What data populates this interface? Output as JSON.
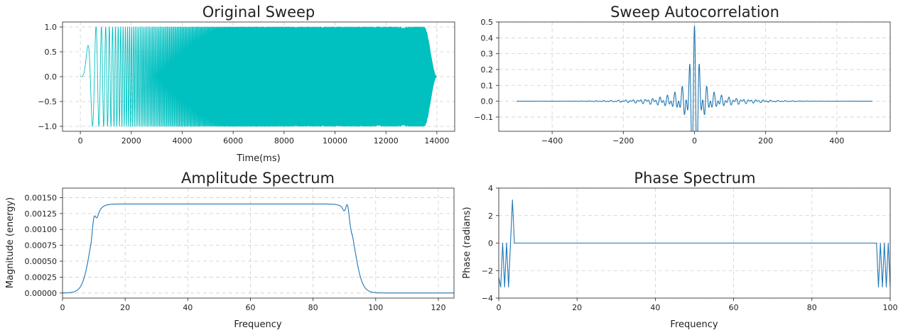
{
  "chart_data": [
    {
      "id": "sweep",
      "type": "line",
      "title": "Original Sweep",
      "xlabel": "Time(ms)",
      "ylabel": "",
      "xlim": [
        -700,
        14700
      ],
      "ylim": [
        -1.1,
        1.1
      ],
      "xticks": [
        0,
        2000,
        4000,
        6000,
        8000,
        10000,
        12000,
        14000
      ],
      "xtick_labels": [
        "0",
        "2000",
        "4000",
        "6000",
        "8000",
        "10000",
        "12000",
        "14000"
      ],
      "yticks": [
        -1.0,
        -0.5,
        0.0,
        0.5,
        1.0
      ],
      "ytick_labels": [
        "−1.0",
        "−0.5",
        "0.0",
        "0.5",
        "1.0"
      ],
      "grid": true,
      "color": "#00c0c0",
      "series": [
        {
          "kind": "linear-sweep",
          "t_start_ms": 0,
          "t_end_ms": 14000,
          "f_start": 0,
          "f_end": 92,
          "taper_ms": 500,
          "amplitude": 1.0
        }
      ]
    },
    {
      "id": "autocorr",
      "type": "line",
      "title": "Sweep Autocorrelation",
      "xlabel": "",
      "ylabel": "",
      "xlim": [
        -550,
        550
      ],
      "ylim": [
        -0.19,
        0.5
      ],
      "xticks": [
        -400,
        -200,
        0,
        200,
        400
      ],
      "xtick_labels": [
        "−400",
        "−200",
        "0",
        "200",
        "400"
      ],
      "yticks": [
        -0.1,
        0.0,
        0.1,
        0.2,
        0.3,
        0.4,
        0.5
      ],
      "ytick_labels": [
        "−0.1",
        "0.0",
        "0.1",
        "0.2",
        "0.3",
        "0.4",
        "0.5"
      ],
      "grid": true,
      "color": "#1f77b4",
      "series": [
        {
          "kind": "autocorrelation",
          "lag_start": -500,
          "lag_end": 500,
          "peak": 0.475,
          "min_value": -0.155,
          "min_lag": 2
        }
      ]
    },
    {
      "id": "amplitude",
      "type": "line",
      "title": "Amplitude Spectrum",
      "xlabel": "Frequency",
      "ylabel": "Magnitude (energy)",
      "xlim": [
        0,
        125
      ],
      "ylim": [
        -8e-05,
        0.00165
      ],
      "xticks": [
        0,
        20,
        40,
        60,
        80,
        100,
        120
      ],
      "xtick_labels": [
        "0",
        "20",
        "40",
        "60",
        "80",
        "100",
        "120"
      ],
      "yticks": [
        0,
        0.00025,
        0.0005,
        0.00075,
        0.001,
        0.00125,
        0.0015
      ],
      "ytick_labels": [
        "0.00000",
        "0.00025",
        "0.00050",
        "0.00075",
        "0.00100",
        "0.00125",
        "0.00150"
      ],
      "grid": true,
      "color": "#1f77b4",
      "series": [
        {
          "kind": "bandpass",
          "plateau": 0.0014,
          "peak": 0.00156,
          "rise_center": 8.8,
          "fall_center": 93.3,
          "edge_width": 1.2
        }
      ]
    },
    {
      "id": "phase",
      "type": "line",
      "title": "Phase Spectrum",
      "xlabel": "Frequency",
      "ylabel": "Phase (radians)",
      "xlim": [
        0,
        100
      ],
      "ylim": [
        -4,
        4
      ],
      "xticks": [
        0,
        20,
        40,
        60,
        80,
        100
      ],
      "xtick_labels": [
        "0",
        "20",
        "40",
        "60",
        "80",
        "100"
      ],
      "yticks": [
        -4,
        -2,
        0,
        2,
        4
      ],
      "ytick_labels": [
        "−4",
        "−2",
        "0",
        "2",
        "4"
      ],
      "grid": true,
      "color": "#1f77b4",
      "series": [
        {
          "kind": "polyline",
          "x": [
            0,
            0.5,
            1.0,
            1.5,
            2.0,
            2.5,
            3.5,
            4.0,
            96.5,
            97.0,
            97.5,
            98.0,
            98.5,
            99.0,
            99.5,
            100
          ],
          "y": [
            -2.5,
            -3.2,
            0,
            -3.2,
            0,
            -3.2,
            3.14,
            0,
            0,
            -3.2,
            0,
            -3.2,
            0,
            -3.2,
            0,
            -3.2
          ]
        }
      ]
    }
  ]
}
